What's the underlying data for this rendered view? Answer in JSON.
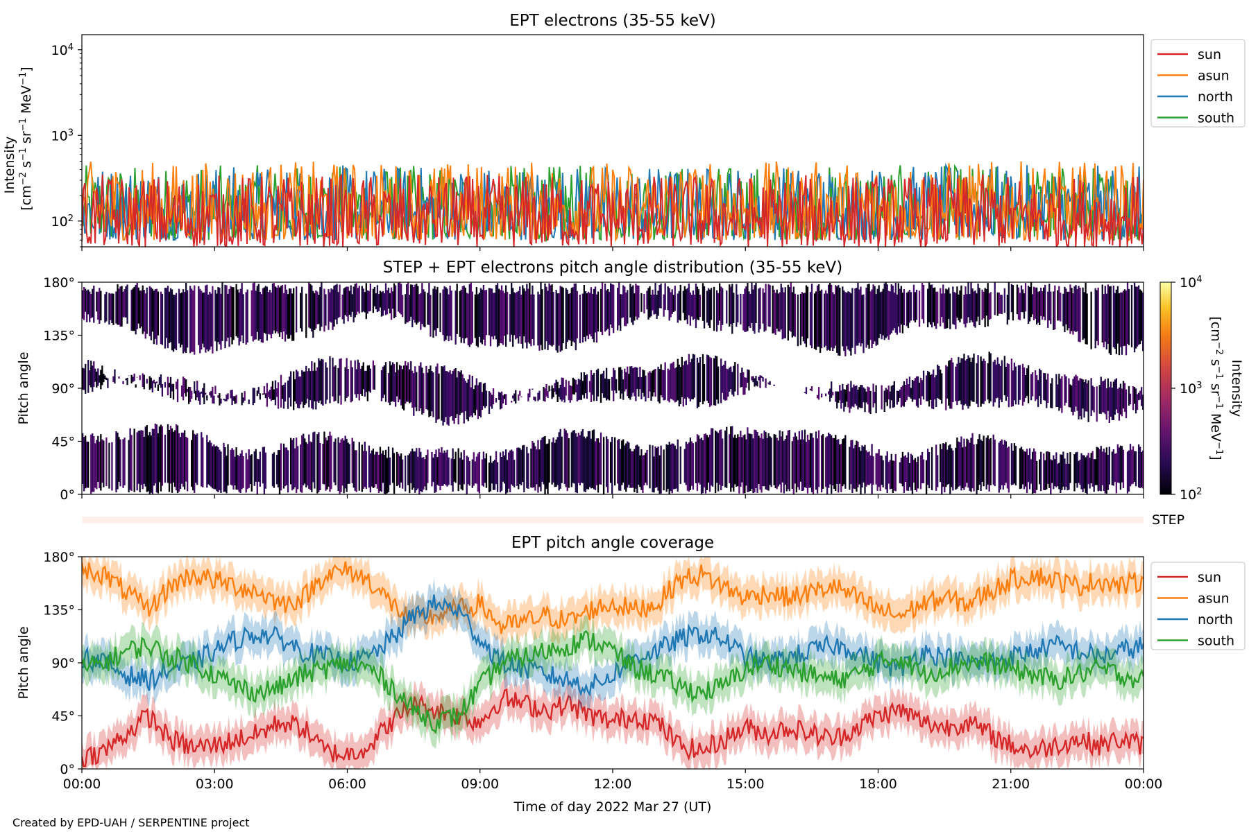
{
  "chart_data": [
    {
      "type": "line",
      "title": "EPT electrons (35-55 keV)",
      "ylabel_line1": "Intensity",
      "ylabel_line2_parts": [
        "[cm",
        "−2",
        " s",
        "−1",
        " sr",
        "−1",
        " MeV",
        "−1",
        "]"
      ],
      "yscale": "log",
      "ylim": [
        50,
        15000
      ],
      "yticks": [
        {
          "base": "10",
          "exp": "2",
          "value": 100
        },
        {
          "base": "10",
          "exp": "3",
          "value": 1000
        },
        {
          "base": "10",
          "exp": "4",
          "value": 10000
        }
      ],
      "xlim": [
        0,
        24
      ],
      "series": [
        {
          "name": "sun",
          "color": "#d62728",
          "typical_range": [
            50,
            350
          ]
        },
        {
          "name": "asun",
          "color": "#ff7f0e",
          "typical_range": [
            60,
            500
          ]
        },
        {
          "name": "north",
          "color": "#1f77b4",
          "typical_range": [
            60,
            450
          ]
        },
        {
          "name": "south",
          "color": "#2ca02c",
          "typical_range": [
            60,
            450
          ]
        }
      ],
      "legend": "outside-right"
    },
    {
      "type": "heatmap",
      "title": "STEP + EPT electrons pitch angle distribution (35-55 keV)",
      "ylabel": "Pitch angle",
      "yticks": [
        "0°",
        "45°",
        "90°",
        "135°",
        "180°"
      ],
      "ylim": [
        0,
        180
      ],
      "xlim": [
        0,
        24
      ],
      "colorbar": {
        "label_parts": [
          "Intensity",
          "[cm",
          "−2",
          " s",
          "−1",
          " sr",
          "−1",
          " MeV",
          "−1",
          "]"
        ],
        "scale": "log",
        "range": [
          100,
          10000
        ],
        "ticks": [
          {
            "base": "10",
            "exp": "2"
          },
          {
            "base": "10",
            "exp": "3"
          },
          {
            "base": "10",
            "exp": "4"
          }
        ],
        "colormap": "inferno"
      }
    },
    {
      "type": "bar",
      "label": "STEP",
      "xlim": [
        0,
        24
      ]
    },
    {
      "type": "line",
      "title": "EPT pitch angle coverage",
      "ylabel": "Pitch angle",
      "yticks": [
        "0°",
        "45°",
        "90°",
        "135°",
        "180°"
      ],
      "ylim": [
        0,
        180
      ],
      "xlim": [
        0,
        24
      ],
      "xlabel": "Time of day 2022 Mar 27 (UT)",
      "xticks": [
        "00:00",
        "03:00",
        "06:00",
        "09:00",
        "12:00",
        "15:00",
        "18:00",
        "21:00",
        "00:00"
      ],
      "series": [
        {
          "name": "sun",
          "color": "#d62728",
          "x": [
            0,
            0.5,
            1,
            1.5,
            2,
            2.5,
            3,
            3.5,
            4,
            4.5,
            5,
            5.5,
            6,
            6.5,
            7,
            7.5,
            8,
            8.5,
            9,
            9.5,
            10,
            10.5,
            11,
            11.5,
            12,
            12.5,
            13,
            13.5,
            14,
            14.5,
            15,
            15.5,
            16,
            16.5,
            17,
            17.5,
            18,
            18.5,
            19,
            19.5,
            20,
            20.5,
            21,
            21.5,
            22,
            22.5,
            23,
            23.5,
            24
          ],
          "y": [
            10,
            15,
            30,
            45,
            25,
            18,
            20,
            25,
            30,
            40,
            35,
            15,
            12,
            20,
            40,
            55,
            50,
            45,
            40,
            60,
            55,
            50,
            55,
            45,
            40,
            45,
            40,
            20,
            15,
            25,
            35,
            30,
            35,
            30,
            25,
            35,
            45,
            50,
            40,
            35,
            40,
            30,
            20,
            15,
            20,
            25,
            20,
            25,
            20
          ]
        },
        {
          "name": "asun",
          "color": "#ff7f0e",
          "x": [
            0,
            0.5,
            1,
            1.5,
            2,
            2.5,
            3,
            3.5,
            4,
            4.5,
            5,
            5.5,
            6,
            6.5,
            7,
            7.5,
            8,
            8.5,
            9,
            9.5,
            10,
            10.5,
            11,
            11.5,
            12,
            12.5,
            13,
            13.5,
            14,
            14.5,
            15,
            15.5,
            16,
            16.5,
            17,
            17.5,
            18,
            18.5,
            19,
            19.5,
            20,
            20.5,
            21,
            21.5,
            22,
            22.5,
            23,
            23.5,
            24
          ],
          "y": [
            170,
            165,
            150,
            135,
            155,
            165,
            160,
            155,
            150,
            140,
            145,
            165,
            168,
            160,
            140,
            125,
            130,
            135,
            140,
            120,
            125,
            130,
            125,
            135,
            140,
            135,
            140,
            160,
            165,
            155,
            145,
            150,
            145,
            150,
            155,
            145,
            135,
            130,
            140,
            145,
            140,
            150,
            160,
            165,
            160,
            155,
            160,
            155,
            160
          ]
        },
        {
          "name": "north",
          "color": "#1f77b4",
          "x": [
            0,
            0.5,
            1,
            1.5,
            2,
            2.5,
            3,
            3.5,
            4,
            4.5,
            5,
            5.5,
            6,
            6.5,
            7,
            7.5,
            8,
            8.5,
            9,
            9.5,
            10,
            10.5,
            11,
            11.5,
            12,
            12.5,
            13,
            13.5,
            14,
            14.5,
            15,
            15.5,
            16,
            16.5,
            17,
            17.5,
            18,
            18.5,
            19,
            19.5,
            20,
            20.5,
            21,
            21.5,
            22,
            22.5,
            23,
            23.5,
            24
          ],
          "y": [
            95,
            90,
            80,
            75,
            85,
            90,
            100,
            110,
            115,
            110,
            100,
            95,
            90,
            95,
            110,
            130,
            140,
            135,
            110,
            90,
            85,
            80,
            75,
            70,
            80,
            95,
            100,
            110,
            115,
            110,
            95,
            90,
            95,
            100,
            105,
            100,
            90,
            85,
            100,
            95,
            90,
            90,
            95,
            100,
            105,
            100,
            95,
            100,
            105
          ]
        },
        {
          "name": "south",
          "color": "#2ca02c",
          "x": [
            0,
            0.5,
            1,
            1.5,
            2,
            2.5,
            3,
            3.5,
            4,
            4.5,
            5,
            5.5,
            6,
            6.5,
            7,
            7.5,
            8,
            8.5,
            9,
            9.5,
            10,
            10.5,
            11,
            11.5,
            12,
            12.5,
            13,
            13.5,
            14,
            14.5,
            15,
            15.5,
            16,
            16.5,
            17,
            17.5,
            18,
            18.5,
            19,
            19.5,
            20,
            20.5,
            21,
            21.5,
            22,
            22.5,
            23,
            23.5,
            24
          ],
          "y": [
            85,
            90,
            100,
            105,
            95,
            90,
            80,
            70,
            65,
            70,
            80,
            85,
            90,
            85,
            70,
            50,
            40,
            45,
            70,
            90,
            95,
            100,
            105,
            110,
            100,
            85,
            80,
            70,
            65,
            70,
            85,
            90,
            85,
            80,
            75,
            80,
            90,
            95,
            80,
            85,
            90,
            90,
            85,
            80,
            75,
            80,
            85,
            80,
            75
          ]
        }
      ],
      "legend": "outside-right"
    }
  ],
  "credit": "Created by EPD-UAH / SERPENTINE project"
}
